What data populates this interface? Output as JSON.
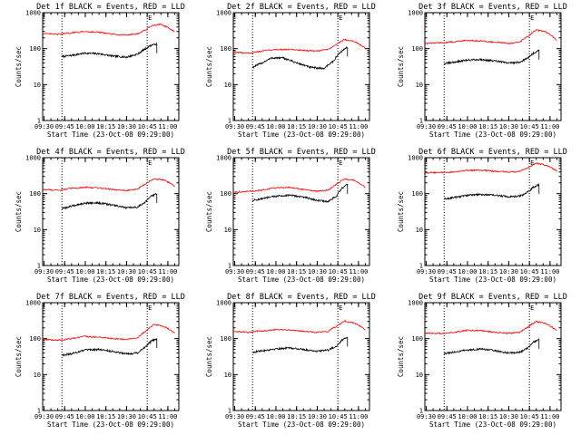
{
  "figure": {
    "background": "#ffffff",
    "axis_color": "#000000",
    "events_color": "#000000",
    "lld_color": "#ff0000"
  },
  "chart_data": [
    {
      "type": "line",
      "title": "Det 1f BLACK = Events, RED = LLD",
      "ylabel": "Counts/sec",
      "xlabel": "Start Time (23-Oct-08 09:29:00)",
      "yscale": "log",
      "ylim": [
        1,
        1000
      ],
      "y_ticks": [
        "1",
        "10",
        "100",
        "1000"
      ],
      "x_ticks": [
        "09:30",
        "09:45",
        "10:00",
        "10:15",
        "10:30",
        "10:45",
        "11:00"
      ],
      "xlim": [
        "09:29",
        "11:08"
      ],
      "markers": [
        {
          "x": "09:43",
          "label": ""
        },
        {
          "x": "10:45",
          "label": "E"
        }
      ],
      "series": [
        {
          "name": "Events",
          "color": "#000000",
          "x": [
            "09:43",
            "09:50",
            "10:00",
            "10:10",
            "10:20",
            "10:30",
            "10:38",
            "10:44",
            "10:48",
            "10:52"
          ],
          "values": [
            60,
            65,
            75,
            72,
            62,
            58,
            70,
            100,
            125,
            135
          ]
        },
        {
          "name": "LLD",
          "color": "#ff0000",
          "x": [
            "09:29",
            "09:40",
            "09:50",
            "10:00",
            "10:10",
            "10:20",
            "10:30",
            "10:38",
            "10:44",
            "10:48",
            "10:55",
            "11:00",
            "11:05"
          ],
          "values": [
            260,
            250,
            275,
            300,
            285,
            250,
            240,
            260,
            330,
            430,
            480,
            380,
            290
          ]
        }
      ]
    },
    {
      "type": "line",
      "title": "Det 2f BLACK = Events, RED = LLD",
      "ylabel": "Counts/sec",
      "xlabel": "Start Time (23-Oct-08 09:29:00)",
      "yscale": "log",
      "ylim": [
        1,
        1000
      ],
      "y_ticks": [
        "1",
        "10",
        "100",
        "1000"
      ],
      "x_ticks": [
        "09:30",
        "09:45",
        "10:00",
        "10:15",
        "10:30",
        "10:45",
        "11:00"
      ],
      "xlim": [
        "09:29",
        "11:08"
      ],
      "markers": [
        {
          "x": "09:43",
          "label": ""
        },
        {
          "x": "10:45",
          "label": "E"
        }
      ],
      "series": [
        {
          "name": "Events",
          "color": "#000000",
          "x": [
            "09:43",
            "09:50",
            "09:57",
            "10:05",
            "10:15",
            "10:25",
            "10:35",
            "10:42",
            "10:47",
            "10:52"
          ],
          "values": [
            30,
            40,
            55,
            55,
            40,
            30,
            28,
            45,
            80,
            110
          ]
        },
        {
          "name": "LLD",
          "color": "#ff0000",
          "x": [
            "09:29",
            "09:40",
            "09:50",
            "10:00",
            "10:10",
            "10:20",
            "10:30",
            "10:38",
            "10:44",
            "10:50",
            "10:57",
            "11:05"
          ],
          "values": [
            80,
            75,
            85,
            95,
            95,
            90,
            85,
            95,
            130,
            180,
            160,
            100
          ]
        }
      ]
    },
    {
      "type": "line",
      "title": "Det 3f BLACK = Events, RED = LLD",
      "ylabel": "Counts/sec",
      "xlabel": "Start Time (23-Oct-08 09:29:00)",
      "yscale": "log",
      "ylim": [
        1,
        1000
      ],
      "y_ticks": [
        "1",
        "10",
        "100",
        "1000"
      ],
      "x_ticks": [
        "09:30",
        "09:45",
        "10:00",
        "10:15",
        "10:30",
        "10:45",
        "11:00"
      ],
      "xlim": [
        "09:29",
        "11:08"
      ],
      "markers": [
        {
          "x": "09:43",
          "label": ""
        },
        {
          "x": "10:45",
          "label": "E"
        }
      ],
      "series": [
        {
          "name": "Events",
          "color": "#000000",
          "x": [
            "09:43",
            "09:50",
            "10:00",
            "10:10",
            "10:20",
            "10:30",
            "10:38",
            "10:44",
            "10:48",
            "10:52"
          ],
          "values": [
            38,
            42,
            48,
            50,
            45,
            40,
            42,
            55,
            75,
            90
          ]
        },
        {
          "name": "LLD",
          "color": "#ff0000",
          "x": [
            "09:29",
            "09:40",
            "09:50",
            "10:00",
            "10:10",
            "10:20",
            "10:30",
            "10:38",
            "10:44",
            "10:50",
            "10:57",
            "11:05"
          ],
          "values": [
            140,
            145,
            155,
            170,
            165,
            150,
            140,
            150,
            220,
            330,
            290,
            170
          ]
        }
      ]
    },
    {
      "type": "line",
      "title": "Det 4f BLACK = Events, RED = LLD",
      "ylabel": "Counts/sec",
      "xlabel": "Start Time (23-Oct-08 09:29:00)",
      "yscale": "log",
      "ylim": [
        1,
        1000
      ],
      "y_ticks": [
        "1",
        "10",
        "100",
        "1000"
      ],
      "x_ticks": [
        "09:30",
        "09:45",
        "10:00",
        "10:15",
        "10:30",
        "10:45",
        "11:00"
      ],
      "xlim": [
        "09:29",
        "11:08"
      ],
      "markers": [
        {
          "x": "09:43",
          "label": ""
        },
        {
          "x": "10:45",
          "label": "E"
        }
      ],
      "series": [
        {
          "name": "Events",
          "color": "#000000",
          "x": [
            "09:43",
            "09:50",
            "10:00",
            "10:10",
            "10:20",
            "10:30",
            "10:38",
            "10:44",
            "10:48",
            "10:52"
          ],
          "values": [
            38,
            45,
            55,
            55,
            48,
            40,
            42,
            60,
            85,
            100
          ]
        },
        {
          "name": "LLD",
          "color": "#ff0000",
          "x": [
            "09:29",
            "09:40",
            "09:50",
            "10:00",
            "10:10",
            "10:20",
            "10:30",
            "10:38",
            "10:44",
            "10:50",
            "10:57",
            "11:05"
          ],
          "values": [
            130,
            125,
            140,
            150,
            145,
            130,
            120,
            135,
            190,
            260,
            240,
            160
          ]
        }
      ]
    },
    {
      "type": "line",
      "title": "Det 5f BLACK = Events, RED = LLD",
      "ylabel": "Counts/sec",
      "xlabel": "Start Time (23-Oct-08 09:29:00)",
      "yscale": "log",
      "ylim": [
        1,
        1000
      ],
      "y_ticks": [
        "1",
        "10",
        "100",
        "1000"
      ],
      "x_ticks": [
        "09:30",
        "09:45",
        "10:00",
        "10:15",
        "10:30",
        "10:45",
        "11:00"
      ],
      "xlim": [
        "09:29",
        "11:08"
      ],
      "markers": [
        {
          "x": "09:43",
          "label": ""
        },
        {
          "x": "10:45",
          "label": "E"
        }
      ],
      "series": [
        {
          "name": "Events",
          "color": "#000000",
          "x": [
            "09:43",
            "09:50",
            "10:00",
            "10:10",
            "10:20",
            "10:30",
            "10:38",
            "10:44",
            "10:48",
            "10:52"
          ],
          "values": [
            65,
            72,
            85,
            90,
            80,
            65,
            60,
            85,
            140,
            180
          ]
        },
        {
          "name": "LLD",
          "color": "#ff0000",
          "x": [
            "09:29",
            "09:40",
            "09:50",
            "10:00",
            "10:10",
            "10:20",
            "10:30",
            "10:38",
            "10:44",
            "10:50",
            "10:57",
            "11:05"
          ],
          "values": [
            110,
            115,
            125,
            145,
            150,
            130,
            115,
            125,
            180,
            260,
            230,
            150
          ]
        }
      ]
    },
    {
      "type": "line",
      "title": "Det 6f BLACK = Events, RED = LLD",
      "ylabel": "Counts/sec",
      "xlabel": "Start Time (23-Oct-08 09:29:00)",
      "yscale": "log",
      "ylim": [
        1,
        1000
      ],
      "y_ticks": [
        "1",
        "10",
        "100",
        "1000"
      ],
      "x_ticks": [
        "09:30",
        "09:45",
        "10:00",
        "10:15",
        "10:30",
        "10:45",
        "11:00"
      ],
      "xlim": [
        "09:29",
        "11:08"
      ],
      "markers": [
        {
          "x": "09:43",
          "label": ""
        },
        {
          "x": "10:45",
          "label": "E"
        }
      ],
      "series": [
        {
          "name": "Events",
          "color": "#000000",
          "x": [
            "09:43",
            "09:50",
            "10:00",
            "10:10",
            "10:20",
            "10:30",
            "10:38",
            "10:44",
            "10:48",
            "10:52"
          ],
          "values": [
            70,
            78,
            90,
            95,
            90,
            82,
            85,
            110,
            150,
            180
          ]
        },
        {
          "name": "LLD",
          "color": "#ff0000",
          "x": [
            "09:29",
            "09:40",
            "09:50",
            "10:00",
            "10:10",
            "10:20",
            "10:30",
            "10:38",
            "10:44",
            "10:50",
            "10:57",
            "11:05"
          ],
          "values": [
            380,
            385,
            400,
            440,
            450,
            420,
            400,
            410,
            520,
            700,
            620,
            430
          ]
        }
      ]
    },
    {
      "type": "line",
      "title": "Det 7f BLACK = Events, RED = LLD",
      "ylabel": "Counts/sec",
      "xlabel": "Start Time (23-Oct-08 09:29:00)",
      "yscale": "log",
      "ylim": [
        1,
        1000
      ],
      "y_ticks": [
        "1",
        "10",
        "100",
        "1000"
      ],
      "x_ticks": [
        "09:30",
        "09:45",
        "10:00",
        "10:15",
        "10:30",
        "10:45",
        "11:00"
      ],
      "xlim": [
        "09:29",
        "11:08"
      ],
      "markers": [
        {
          "x": "09:43",
          "label": ""
        },
        {
          "x": "10:45",
          "label": "E"
        }
      ],
      "series": [
        {
          "name": "Events",
          "color": "#000000",
          "x": [
            "09:43",
            "09:50",
            "10:00",
            "10:10",
            "10:20",
            "10:30",
            "10:38",
            "10:44",
            "10:48",
            "10:52"
          ],
          "values": [
            35,
            38,
            48,
            50,
            44,
            38,
            40,
            60,
            85,
            100
          ]
        },
        {
          "name": "LLD",
          "color": "#ff0000",
          "x": [
            "09:29",
            "09:40",
            "09:50",
            "10:00",
            "10:10",
            "10:20",
            "10:30",
            "10:38",
            "10:44",
            "10:50",
            "10:57",
            "11:05"
          ],
          "values": [
            95,
            90,
            100,
            115,
            110,
            100,
            95,
            105,
            160,
            250,
            220,
            140
          ]
        }
      ]
    },
    {
      "type": "line",
      "title": "Det 8f BLACK = Events, RED = LLD",
      "ylabel": "Counts/sec",
      "xlabel": "Start Time (23-Oct-08 09:29:00)",
      "yscale": "log",
      "ylim": [
        1,
        1000
      ],
      "y_ticks": [
        "1",
        "10",
        "100",
        "1000"
      ],
      "x_ticks": [
        "09:30",
        "09:45",
        "10:00",
        "10:15",
        "10:30",
        "10:45",
        "11:00"
      ],
      "xlim": [
        "09:29",
        "11:08"
      ],
      "markers": [
        {
          "x": "09:43",
          "label": ""
        },
        {
          "x": "10:45",
          "label": "E"
        }
      ],
      "series": [
        {
          "name": "Events",
          "color": "#000000",
          "x": [
            "09:43",
            "09:50",
            "10:00",
            "10:10",
            "10:20",
            "10:30",
            "10:38",
            "10:44",
            "10:48",
            "10:52"
          ],
          "values": [
            42,
            46,
            52,
            55,
            50,
            45,
            48,
            62,
            90,
            110
          ]
        },
        {
          "name": "LLD",
          "color": "#ff0000",
          "x": [
            "09:29",
            "09:40",
            "09:50",
            "10:00",
            "10:10",
            "10:20",
            "10:30",
            "10:38",
            "10:44",
            "10:50",
            "10:57",
            "11:05"
          ],
          "values": [
            160,
            150,
            165,
            180,
            175,
            160,
            150,
            160,
            220,
            310,
            270,
            180
          ]
        }
      ]
    },
    {
      "type": "line",
      "title": "Det 9f BLACK = Events, RED = LLD",
      "ylabel": "Counts/sec",
      "xlabel": "Start Time (23-Oct-08 09:29:00)",
      "yscale": "log",
      "ylim": [
        1,
        1000
      ],
      "y_ticks": [
        "1",
        "10",
        "100",
        "1000"
      ],
      "x_ticks": [
        "09:30",
        "09:45",
        "10:00",
        "10:15",
        "10:30",
        "10:45",
        "11:00"
      ],
      "xlim": [
        "09:29",
        "11:08"
      ],
      "markers": [
        {
          "x": "09:43",
          "label": ""
        },
        {
          "x": "10:45",
          "label": "E"
        }
      ],
      "series": [
        {
          "name": "Events",
          "color": "#000000",
          "x": [
            "09:43",
            "09:50",
            "10:00",
            "10:10",
            "10:20",
            "10:30",
            "10:38",
            "10:44",
            "10:48",
            "10:52"
          ],
          "values": [
            38,
            42,
            48,
            52,
            46,
            40,
            42,
            55,
            80,
            95
          ]
        },
        {
          "name": "LLD",
          "color": "#ff0000",
          "x": [
            "09:29",
            "09:40",
            "09:50",
            "10:00",
            "10:10",
            "10:20",
            "10:30",
            "10:38",
            "10:44",
            "10:50",
            "10:57",
            "11:05"
          ],
          "values": [
            140,
            140,
            150,
            170,
            165,
            150,
            140,
            150,
            210,
            300,
            260,
            170
          ]
        }
      ]
    }
  ]
}
